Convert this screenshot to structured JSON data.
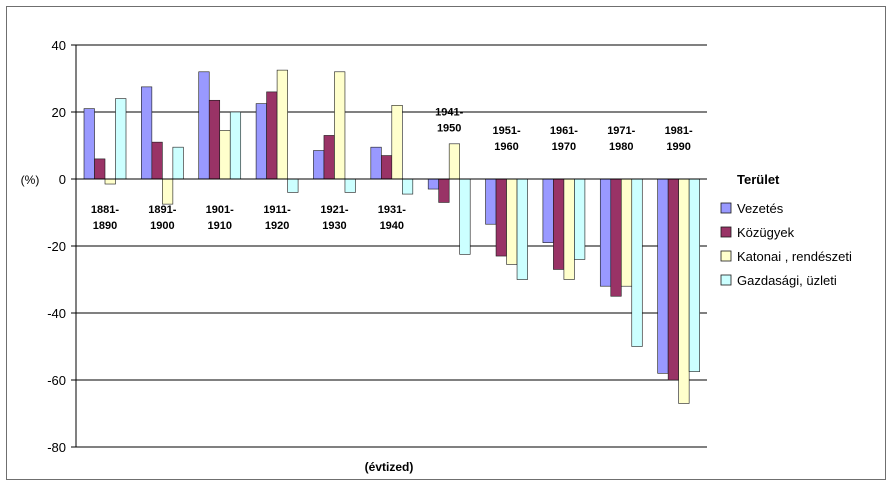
{
  "chart_data": {
    "type": "bar",
    "title": "",
    "xlabel": "(évtized)",
    "ylabel": "(%)",
    "ylim": [
      -80,
      40
    ],
    "yticks": [
      "40",
      "20",
      "0",
      "-20",
      "-40",
      "-60",
      "-80"
    ],
    "ytick_values": [
      40,
      20,
      0,
      -20,
      -40,
      -60,
      -80
    ],
    "grid": true,
    "legend_position": "right",
    "legend_title": "Terület",
    "categories": [
      [
        "1881-",
        "1890"
      ],
      [
        "1891-",
        "1900"
      ],
      [
        "1901-",
        "1910"
      ],
      [
        "1911-",
        "1920"
      ],
      [
        "1921-",
        "1930"
      ],
      [
        "1931-",
        "1940"
      ],
      [
        "1941-",
        "1950"
      ],
      [
        "1951-",
        "1960"
      ],
      [
        "1961-",
        "1970"
      ],
      [
        "1971-",
        "1980"
      ],
      [
        "1981-",
        "1990"
      ]
    ],
    "series": [
      {
        "name": "Vezetés",
        "color": "#9999ff",
        "values": [
          21,
          27.5,
          32,
          22.5,
          8.5,
          9.5,
          -3,
          -13.5,
          -19,
          -32,
          -58
        ]
      },
      {
        "name": "Közügyek",
        "color": "#993366",
        "values": [
          6,
          11,
          23.5,
          26,
          13,
          7,
          -7,
          -23,
          -27,
          -35,
          -60
        ]
      },
      {
        "name": "Katonai , rendészeti",
        "color": "#ffffcc",
        "values": [
          -1.5,
          -7.5,
          14.5,
          32.5,
          32,
          22,
          10.5,
          -25.5,
          -30,
          -32,
          -67
        ]
      },
      {
        "name": "Gazdasági, üzleti",
        "color": "#ccffff",
        "values": [
          24,
          9.5,
          20,
          -4,
          -4,
          -4.5,
          -22.5,
          -30,
          -24,
          -50,
          -57.5
        ]
      }
    ]
  }
}
